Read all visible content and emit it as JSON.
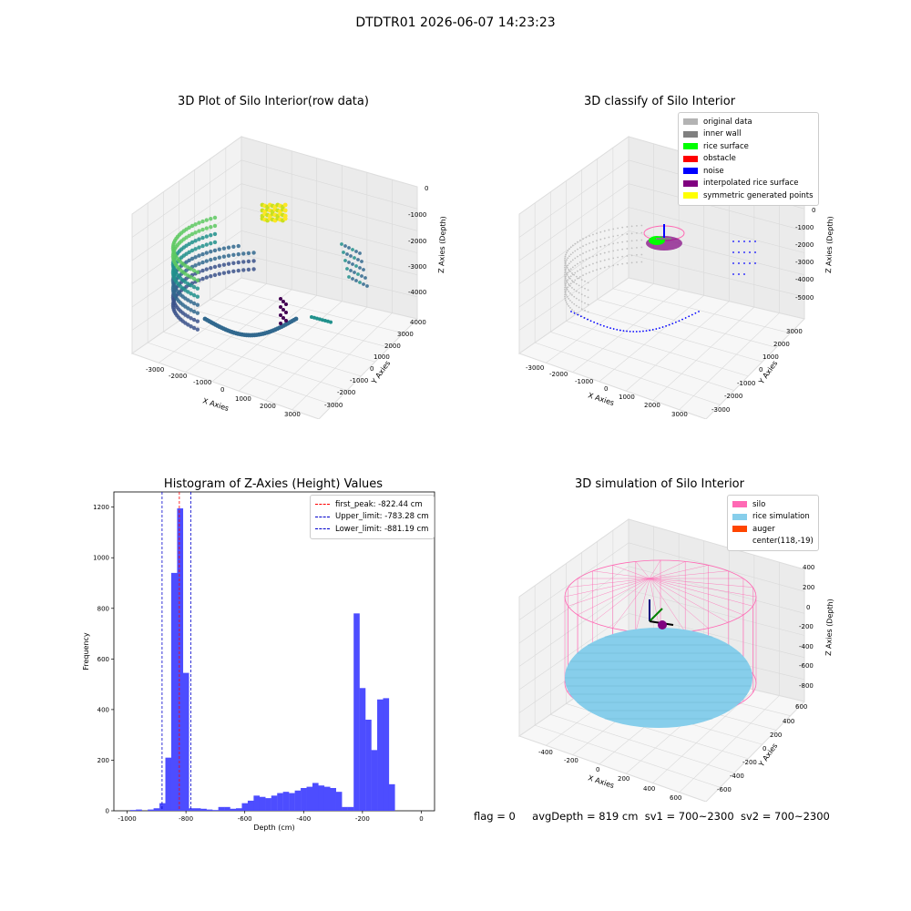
{
  "suptitle": "DTDTR01 2026-06-07 14:23:23",
  "panel_raw": {
    "title": "3D Plot of Silo Interior(row data)",
    "xlabel": "X Axies",
    "ylabel": "Y Axies",
    "zlabel": "Z Axies (Depth)",
    "xticks": [
      "-3000",
      "-2000",
      "-1000",
      "0",
      "1000",
      "2000",
      "3000"
    ],
    "yticks": [
      "4000",
      "3000",
      "2000",
      "1000",
      "0",
      "-1000",
      "-2000",
      "-3000"
    ],
    "zticks": [
      "0",
      "-1000",
      "-2000",
      "-3000",
      "-4000"
    ]
  },
  "panel_classify": {
    "title": "3D classify of Silo Interior",
    "xlabel": "X Axies",
    "ylabel": "Y Axies",
    "zlabel": "Z Axies (Depth)",
    "xticks": [
      "-3000",
      "-2000",
      "-1000",
      "0",
      "1000",
      "2000",
      "3000"
    ],
    "yticks": [
      "3000",
      "2000",
      "1000",
      "0",
      "-1000",
      "-2000",
      "-3000"
    ],
    "zticks": [
      "0",
      "-1000",
      "-2000",
      "-3000",
      "-4000",
      "-5000"
    ],
    "legend": [
      {
        "label": "original data",
        "color": "#b3b3b3"
      },
      {
        "label": "inner wall",
        "color": "#808080"
      },
      {
        "label": "rice surface",
        "color": "#00ff00"
      },
      {
        "label": "obstacle",
        "color": "#ff0000"
      },
      {
        "label": "noise",
        "color": "#0000ff"
      },
      {
        "label": "interpolated rice surface",
        "color": "#800080"
      },
      {
        "label": "symmetric generated points",
        "color": "#ffff00"
      }
    ]
  },
  "panel_sim": {
    "title": "3D simulation of Silo Interior",
    "xlabel": "X Axies",
    "ylabel": "Y Axies",
    "zlabel": "Z Axies (Depth)",
    "xticks": [
      "-400",
      "-200",
      "0",
      "200",
      "400",
      "600"
    ],
    "yticks": [
      "600",
      "400",
      "200",
      "0",
      "-200",
      "-400",
      "-600"
    ],
    "zticks": [
      "400",
      "200",
      "0",
      "-200",
      "-400",
      "-600",
      "-800"
    ],
    "legend": [
      {
        "label": "silo",
        "color": "#ff69b4"
      },
      {
        "label": "rice simulation",
        "color": "#87ceeb"
      },
      {
        "label": "auger",
        "color": "#ff4500"
      },
      {
        "label": "center(118,-19)",
        "color": ""
      }
    ]
  },
  "chart_data": {
    "type": "bar",
    "title": "Histogram of Z-Axies (Height) Values",
    "xlabel": "Depth (cm)",
    "ylabel": "Frequency",
    "xlim": [
      -1045,
      45
    ],
    "ylim": [
      0,
      1260
    ],
    "xticks": [
      "-1000",
      "-800",
      "-600",
      "-400",
      "-200",
      "0"
    ],
    "yticks": [
      "0",
      "200",
      "400",
      "600",
      "800",
      "1000",
      "1200"
    ],
    "bin_width": 20.5,
    "bin_starts": [
      -990,
      -970,
      -950,
      -930,
      -910,
      -890,
      -870,
      -850,
      -830,
      -810,
      -790,
      -770,
      -750,
      -730,
      -710,
      -690,
      -670,
      -650,
      -630,
      -610,
      -590,
      -570,
      -550,
      -530,
      -510,
      -490,
      -470,
      -450,
      -430,
      -410,
      -390,
      -370,
      -350,
      -330,
      -310,
      -290,
      -270,
      -250,
      -230,
      -210,
      -190,
      -170,
      -150,
      -130,
      -110,
      -90,
      -70,
      -50,
      -30,
      -10
    ],
    "values": [
      3,
      5,
      0,
      5,
      10,
      30,
      210,
      940,
      1195,
      545,
      10,
      10,
      8,
      5,
      3,
      15,
      15,
      8,
      10,
      30,
      40,
      60,
      55,
      50,
      60,
      70,
      75,
      70,
      80,
      90,
      95,
      110,
      100,
      95,
      90,
      75,
      15,
      15,
      780,
      485,
      360,
      240,
      440,
      445,
      105,
      0,
      0,
      0,
      0,
      0
    ],
    "lines": [
      {
        "label": "first_peak: -822.44 cm",
        "value": -822.44,
        "color": "#ff0000"
      },
      {
        "label": "Upper_limit: -783.28 cm",
        "value": -783.28,
        "color": "#0000cc"
      },
      {
        "label": "Lower_limit: -881.19 cm",
        "value": -881.19,
        "color": "#0000cc"
      }
    ],
    "bar_color": "#4d4dff",
    "legend_position": "top-right"
  },
  "status": {
    "flag": "flag = 0",
    "avg": "avgDepth = 819 cm",
    "sv1": "sv1 = 700~2300",
    "sv2": "sv2 = 700~2300"
  }
}
